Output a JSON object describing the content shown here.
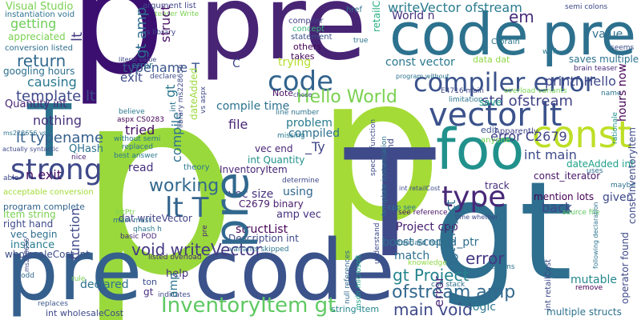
{
  "words": [
    {
      "id": "w1",
      "text": "p",
      "color": "#3b0f70"
    },
    {
      "id": "w2",
      "text": "pre",
      "color": "#482475"
    },
    {
      "id": "w3",
      "text": "code",
      "color": "#2c728e"
    },
    {
      "id": "w4",
      "text": "pre",
      "color": "#2d708e"
    },
    {
      "id": "w5",
      "text": "p",
      "color": "#9ad93c"
    },
    {
      "id": "w6",
      "text": "p",
      "color": "#a5db36"
    },
    {
      "id": "w7",
      "text": "pre",
      "color": "#355f8d"
    },
    {
      "id": "w8",
      "text": "code",
      "color": "#3b528b"
    },
    {
      "id": "w9",
      "text": "gt",
      "color": "#2e6e8e"
    },
    {
      "id": "w10",
      "text": "T",
      "color": "#3e4a89"
    },
    {
      "id": "w11",
      "text": "T",
      "color": "#2c728e"
    },
    {
      "id": "w12",
      "text": "foo",
      "color": "#21918c"
    },
    {
      "id": "w13",
      "text": "const",
      "color": "#bddf26"
    },
    {
      "id": "w14",
      "text": "vector lt",
      "color": "#3b528b"
    },
    {
      "id": "w15",
      "text": "compiler error",
      "color": "#3b528b"
    },
    {
      "id": "w16",
      "text": "strong",
      "color": "#3e4989"
    },
    {
      "id": "w17",
      "text": "type",
      "color": "#482878"
    },
    {
      "id": "w18",
      "text": "pre",
      "color": "#31688e"
    },
    {
      "id": "w19",
      "text": "code",
      "color": "#32648e"
    },
    {
      "id": "w20",
      "text": "lt T",
      "color": "#33638d"
    },
    {
      "id": "w21",
      "text": "InventoryItem gt",
      "color": "#5ec962"
    },
    {
      "id": "w22",
      "text": "void writeVector",
      "color": "#443983"
    },
    {
      "id": "w23",
      "text": "ofstream amp",
      "color": "#31688e"
    },
    {
      "id": "w24",
      "text": "main void",
      "color": "#3e4989"
    },
    {
      "id": "w25",
      "text": "Hello World",
      "color": "#7ad151"
    },
    {
      "id": "w26",
      "text": "working",
      "color": "#31688e"
    },
    {
      "id": "w27",
      "text": "gt Project",
      "color": "#25848e"
    },
    {
      "id": "w28",
      "text": "return",
      "color": "#31688e"
    },
    {
      "id": "w29",
      "text": "error",
      "color": "#443983"
    },
    {
      "id": "w30",
      "text": "em",
      "color": "#472d7b"
    },
    {
      "id": "w31",
      "text": "writeVector ofstream",
      "color": "#297b8e"
    },
    {
      "id": "w32",
      "text": "World n",
      "color": "#46327e"
    },
    {
      "id": "w33",
      "text": "const vector",
      "color": "#2a788e"
    },
    {
      "id": "w34",
      "text": "printf Hello",
      "color": "#3f4889"
    },
    {
      "id": "w35",
      "text": "std ofstream",
      "color": "#414487"
    },
    {
      "id": "w36",
      "text": "error C2679",
      "color": "#414487"
    },
    {
      "id": "w37",
      "text": "int main",
      "color": "#3e4a89"
    },
    {
      "id": "w38",
      "text": "template lt",
      "color": "#3e4989"
    },
    {
      "id": "w39",
      "text": "lt typename",
      "color": "#355f8d"
    },
    {
      "id": "w40",
      "text": "n exit",
      "color": "#471063"
    },
    {
      "id": "w41",
      "text": "getting",
      "color": "#6ece58"
    },
    {
      "id": "w42",
      "text": "Visual Studio",
      "color": "#7ad151"
    },
    {
      "id": "w43",
      "text": "lt",
      "color": "#443a83"
    },
    {
      "id": "w44",
      "text": "gt amp",
      "color": "#2e6e8e"
    },
    {
      "id": "w45",
      "text": "struct",
      "color": "#471063"
    },
    {
      "id": "w46",
      "text": "typename T",
      "color": "#39558c"
    },
    {
      "id": "w47",
      "text": "exit",
      "color": "#3e4a89"
    },
    {
      "id": "w48",
      "text": "causing",
      "color": "#2a788e"
    },
    {
      "id": "w49",
      "text": "nothing",
      "color": "#46327e"
    },
    {
      "id": "w50",
      "text": "Quantity int",
      "color": "#482576"
    },
    {
      "id": "w51",
      "text": "QHash",
      "color": "#2c728e"
    },
    {
      "id": "w52",
      "text": "tried",
      "color": "#471164"
    },
    {
      "id": "w53",
      "text": "read",
      "color": "#46307e"
    },
    {
      "id": "w54",
      "text": "dat writeVector",
      "color": "#414487"
    },
    {
      "id": "w55",
      "text": "compile time",
      "color": "#2c728e"
    },
    {
      "id": "w56",
      "text": "file",
      "color": "#482677"
    },
    {
      "id": "w57",
      "text": "problem",
      "color": "#297b8e"
    },
    {
      "id": "w58",
      "text": "compiled",
      "color": "#2d718e"
    },
    {
      "id": "w59",
      "text": "vec end",
      "color": "#482475"
    },
    {
      "id": "w60",
      "text": "_Ty",
      "color": "#404588"
    },
    {
      "id": "w61",
      "text": "int Quantity",
      "color": "#21918c"
    },
    {
      "id": "w62",
      "text": "InventoryItem",
      "color": "#482576"
    },
    {
      "id": "w63",
      "text": "vec size",
      "color": "#46307e"
    },
    {
      "id": "w64",
      "text": "using",
      "color": "#31688e"
    },
    {
      "id": "w65",
      "text": "C2679 binary",
      "color": "#481b6d"
    },
    {
      "id": "w66",
      "text": "amp vec",
      "color": "#46307e"
    },
    {
      "id": "w67",
      "text": "structList",
      "color": "#450457"
    },
    {
      "id": "w68",
      "text": "Description int",
      "color": "#3e4989"
    },
    {
      "id": "w69",
      "text": "help",
      "color": "#472f7d"
    },
    {
      "id": "w70",
      "text": "declared",
      "color": "#2c728e"
    },
    {
      "id": "w71",
      "text": "function",
      "color": "#3e4989"
    },
    {
      "id": "w72",
      "text": "Item string",
      "color": "#7ad151"
    },
    {
      "id": "w73",
      "text": "right hand",
      "color": "#3f4889"
    },
    {
      "id": "w74",
      "text": "vec begin",
      "color": "#2e6e8e"
    },
    {
      "id": "w75",
      "text": "instance",
      "color": "#287d8e"
    },
    {
      "id": "w76",
      "text": "wholesaleCost int",
      "color": "#3d4e8a"
    },
    {
      "id": "w77",
      "text": "program complete",
      "color": "#32648e"
    },
    {
      "id": "w78",
      "text": "Project cpp",
      "color": "#482071"
    },
    {
      "id": "w79",
      "text": "boost scoped_ptr",
      "color": "#2e6e8e"
    },
    {
      "id": "w80",
      "text": "match",
      "color": "#2d708e"
    },
    {
      "id": "w81",
      "text": "gt Project",
      "color": "#2e6e8e"
    },
    {
      "id": "w82",
      "text": "error",
      "color": "#482878"
    },
    {
      "id": "w83",
      "text": "logic",
      "color": "#2a788e"
    },
    {
      "id": "w84",
      "text": "mutable",
      "color": "#24878e"
    },
    {
      "id": "w85",
      "text": "back",
      "color": "#3f4788"
    },
    {
      "id": "w86",
      "text": "given",
      "color": "#3e4989"
    },
    {
      "id": "w87",
      "text": "mention lots",
      "color": "#440154"
    },
    {
      "id": "w88",
      "text": "const_iterator",
      "color": "#481769"
    },
    {
      "id": "w89",
      "text": "track",
      "color": "#472c7a"
    },
    {
      "id": "w90",
      "text": "dateAdded int",
      "color": "#1fa088"
    },
    {
      "id": "w91",
      "text": "multiple structs",
      "color": "#2d718e"
    },
    {
      "id": "w92",
      "text": "string Item",
      "color": "#25858e"
    },
    {
      "id": "w93",
      "text": "value",
      "color": "#2e6f8e"
    },
    {
      "id": "w94",
      "text": "saves multiple",
      "color": "#2c728e"
    },
    {
      "id": "w95",
      "text": "data dat",
      "color": "#8fd744"
    },
    {
      "id": "w96",
      "text": "retailCost int",
      "color": "#29af7f"
    },
    {
      "id": "w97",
      "text": "trying",
      "color": "#b5de2b"
    },
    {
      "id": "w98",
      "text": "const InventoryItem",
      "color": "#3e4989"
    },
    {
      "id": "w99",
      "text": "hours now",
      "color": "#440154"
    },
    {
      "id": "w100",
      "text": "int retailCost",
      "color": "#3e4989"
    },
    {
      "id": "w101",
      "text": "operator found",
      "color": "#3e4989"
    },
    {
      "id": "w102",
      "text": "Note",
      "color": "#471063"
    },
    {
      "id": "w103",
      "text": "others",
      "color": "#450457"
    },
    {
      "id": "w104",
      "text": "takes",
      "color": "#46085c"
    },
    {
      "id": "w105",
      "text": "edit",
      "color": "#3b518b"
    },
    {
      "id": "w106",
      "text": "save",
      "color": "#1fa188"
    },
    {
      "id": "w107",
      "text": "ton",
      "color": "#3d4e8a"
    },
    {
      "id": "w108",
      "text": "gt",
      "color": "#46307e"
    },
    {
      "id": "w109",
      "text": "amp",
      "color": "#2c728e"
    },
    {
      "id": "w110",
      "text": "error",
      "color": "#2c728e"
    },
    {
      "id": "w111",
      "text": "googling hours",
      "color": "#2d708e"
    },
    {
      "id": "w112",
      "text": "appreciated",
      "color": "#7ad151"
    },
    {
      "id": "w113",
      "text": "compile",
      "color": "#2c728e"
    },
    {
      "id": "w114",
      "text": "gt",
      "color": "#2a788e"
    },
    {
      "id": "w115",
      "text": "acceptable conversion",
      "color": "#a2da37"
    },
    {
      "id": "w116",
      "text": "C",
      "color": "#3e4a89"
    },
    {
      "id": "w117",
      "text": "argument list",
      "color": "#404688"
    },
    {
      "id": "w118",
      "text": "instantiation void",
      "color": "#2c728e"
    },
    {
      "id": "w119",
      "text": "conversion listed",
      "color": "#2e6e8e"
    },
    {
      "id": "w120",
      "text": "theory",
      "color": "#2a788e"
    },
    {
      "id": "w121",
      "text": "statement",
      "color": "#3b518b"
    },
    {
      "id": "w122",
      "text": "compiler",
      "color": "#424086"
    },
    {
      "id": "w123",
      "text": "concept",
      "color": "#35b779"
    },
    {
      "id": "w124",
      "text": "href",
      "color": "#2c728e"
    },
    {
      "id": "w125",
      "text": "Apparently",
      "color": "#414487"
    },
    {
      "id": "w126",
      "text": "anyone",
      "color": "#75d054"
    },
    {
      "id": "w127",
      "text": "C brain",
      "color": "#2a788e"
    },
    {
      "id": "w128",
      "text": "semi colons",
      "color": "#3e4989"
    },
    {
      "id": "w129",
      "text": "brain teaser",
      "color": "#482878"
    },
    {
      "id": "w130",
      "text": "seems",
      "color": "#3d4e8a"
    },
    {
      "id": "w131",
      "text": "rationale",
      "color": "#21918c"
    },
    {
      "id": "w132",
      "text": "maybe",
      "color": "#2d708e"
    },
    {
      "id": "w133",
      "text": "remove",
      "color": "#440154"
    },
    {
      "id": "w134",
      "text": "enums",
      "color": "#2c728e"
    },
    {
      "id": "w135",
      "text": "call stack",
      "color": "#2e6e8e"
    },
    {
      "id": "w136",
      "text": "knowledge",
      "color": "#8fd744"
    },
    {
      "id": "w137",
      "text": "see reference",
      "color": "#471365"
    },
    {
      "id": "w138",
      "text": "source file",
      "color": "#5ec962"
    },
    {
      "id": "w139",
      "text": "cpp see",
      "color": "#2a788e"
    },
    {
      "id": "w140",
      "text": "basic POD",
      "color": "#482878"
    },
    {
      "id": "w141",
      "text": "listed overload",
      "color": "#482475"
    },
    {
      "id": "w142",
      "text": "variants skipped",
      "color": "#2c728e"
    },
    {
      "id": "w143",
      "text": "null references",
      "color": "#31688e"
    },
    {
      "id": "w144",
      "text": "msdn microsoft",
      "color": "#1f9f88"
    },
    {
      "id": "w145",
      "text": "understand",
      "color": "#3e4989"
    },
    {
      "id": "w146",
      "text": "replaces",
      "color": "#39568c"
    },
    {
      "id": "w147",
      "text": "odd",
      "color": "#31688e"
    },
    {
      "id": "w148",
      "text": "rule",
      "color": "#7ad151"
    },
    {
      "id": "w149",
      "text": "int wholesaleCost",
      "color": "#3e4989"
    },
    {
      "id": "w150",
      "text": "indicates",
      "color": "#3e4989"
    },
    {
      "id": "w151",
      "text": "qhash h",
      "color": "#2a788e"
    },
    {
      "id": "w152",
      "text": "IntPtr",
      "color": "#7ad151"
    },
    {
      "id": "w153",
      "text": "main must",
      "color": "#2c728e"
    },
    {
      "id": "w154",
      "text": "aspx CS0283",
      "color": "#440154"
    },
    {
      "id": "w155",
      "text": "without semi",
      "color": "#2a788e"
    },
    {
      "id": "w156",
      "text": "replaced",
      "color": "#2c728e"
    },
    {
      "id": "w157",
      "text": "best answer",
      "color": "#2a788e"
    },
    {
      "id": "w158",
      "text": "believe",
      "color": "#2a788e"
    },
    {
      "id": "w159",
      "text": "nice",
      "color": "#481f70"
    },
    {
      "id": "w160",
      "text": "able",
      "color": "#3e4989"
    },
    {
      "id": "w161",
      "text": "actually syntactic",
      "color": "#3e4989"
    },
    {
      "id": "w162",
      "text": "ms228656 vs",
      "color": "#2d708e"
    },
    {
      "id": "w163",
      "text": "missing",
      "color": "#2a788e"
    },
    {
      "id": "w164",
      "text": "determine",
      "color": "#3e4989"
    },
    {
      "id": "w165",
      "text": "line number",
      "color": "#2c728e"
    },
    {
      "id": "w166",
      "text": "chose",
      "color": "#3e4989"
    },
    {
      "id": "w167",
      "text": "true",
      "color": "#2c728e"
    },
    {
      "id": "w168",
      "text": "limitation",
      "color": "#2c728e"
    },
    {
      "id": "w169",
      "text": "E4716 main",
      "color": "#3e4989"
    },
    {
      "id": "w170",
      "text": "overload variants",
      "color": "#75d054"
    },
    {
      "id": "w171",
      "text": "name",
      "color": "#2c728e"
    },
    {
      "id": "w172",
      "text": "well",
      "color": "#2a788e"
    },
    {
      "id": "w173",
      "text": "literal value",
      "color": "#3e4989"
    },
    {
      "id": "w174",
      "text": "declare",
      "color": "#3e4989"
    },
    {
      "id": "w175",
      "text": "us library",
      "color": "#3e4989"
    },
    {
      "id": "w176",
      "text": "teaser Write",
      "color": "#7ad151"
    },
    {
      "id": "w177",
      "text": "time whether",
      "color": "#3e4989"
    },
    {
      "id": "w178",
      "text": "standard Hello",
      "color": "#2c728e"
    },
    {
      "id": "w179",
      "text": "special function",
      "color": "#3e4989"
    },
    {
      "id": "w180",
      "text": "template instantiation",
      "color": "#2c728e"
    },
    {
      "id": "w181",
      "text": "following declaration",
      "color": "#2c728e"
    },
    {
      "id": "w182",
      "text": "uses",
      "color": "#2c728e"
    },
    {
      "id": "w183",
      "text": "hand operand",
      "color": "#3e4989"
    },
    {
      "id": "w184",
      "text": "program without",
      "color": "#2c728e"
    },
    {
      "id": "w185",
      "text": "library ms228656",
      "color": "#3e4989"
    },
    {
      "id": "w186",
      "text": "dateAdded",
      "color": "#9ad93c"
    },
    {
      "id": "w187",
      "text": "vs aspx",
      "color": "#3e4989"
    },
    {
      "id": "w188",
      "text": "int",
      "color": "#2c728e"
    },
    {
      "id": "w189",
      "text": "ms228656",
      "color": "#3e4989"
    }
  ]
}
